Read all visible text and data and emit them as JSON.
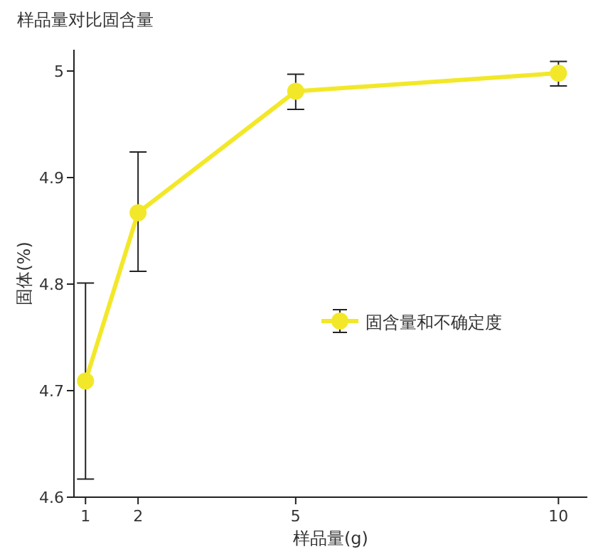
{
  "chart_data": {
    "type": "line",
    "title": "样品量对比固含量",
    "xlabel": "样品量(g)",
    "ylabel": "固体(%)",
    "x": [
      1,
      2,
      5,
      10
    ],
    "series": [
      {
        "name": "固含量和不确定度",
        "color": "#f2e829",
        "values": [
          4.709,
          4.867,
          4.981,
          4.998
        ],
        "errors": [
          [
            4.617,
            4.801
          ],
          [
            4.812,
            4.924
          ],
          [
            4.964,
            4.997
          ],
          [
            4.986,
            5.009
          ]
        ]
      }
    ],
    "xlim": [
      0.78,
      10.55
    ],
    "xticks": [
      1,
      2,
      5,
      10
    ],
    "ylim": [
      4.6,
      5.02
    ],
    "yticks": [
      4.6,
      4.7,
      4.8,
      4.9,
      5
    ],
    "marker": "circle",
    "legend": "right",
    "grid": false
  }
}
